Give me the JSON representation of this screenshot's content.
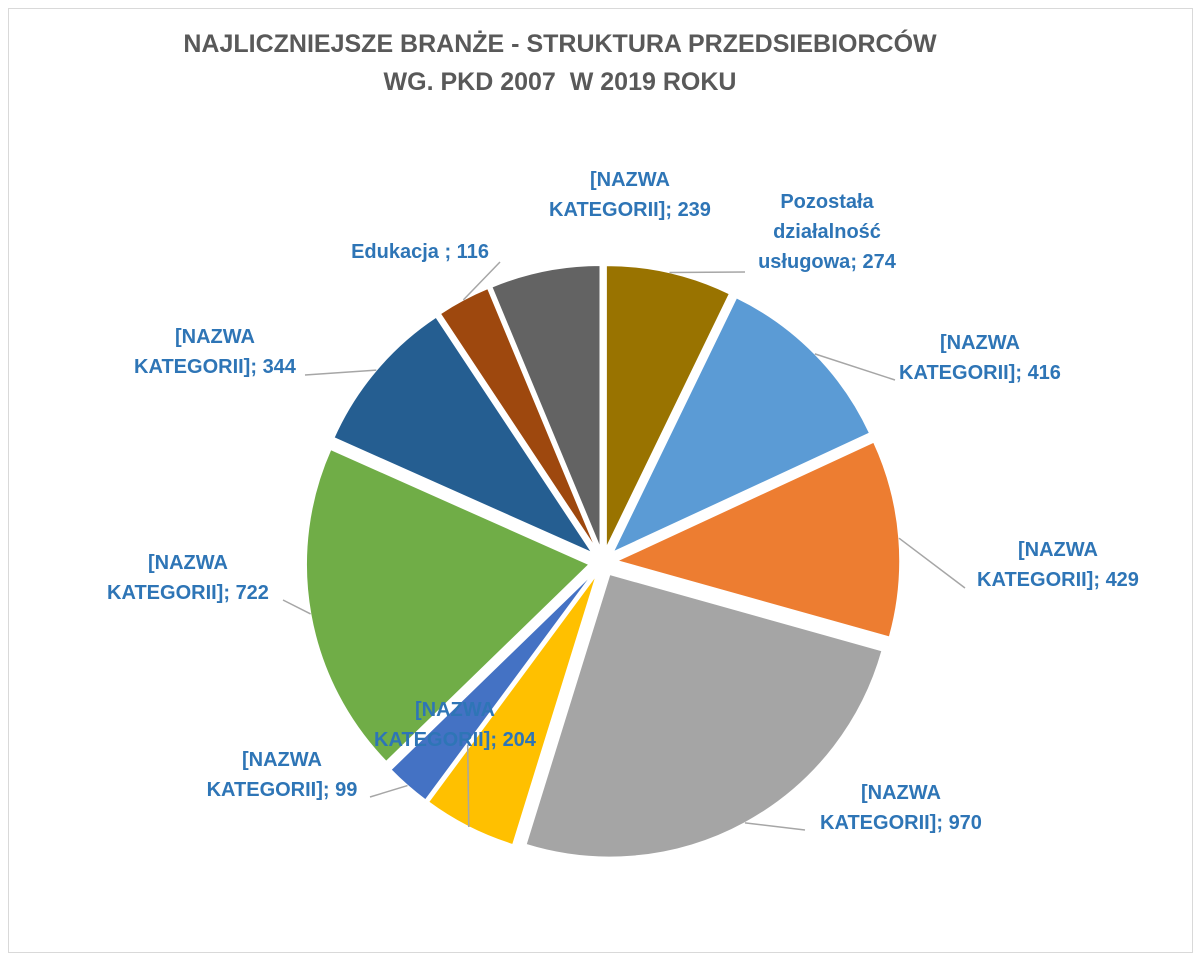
{
  "chart_data": {
    "type": "pie",
    "title": [
      "NAJLICZNIEJSZE BRANŻE - STRUKTURA PRZEDSIEBIORCÓW",
      "WG. PKD 2007  W 2019 ROKU"
    ],
    "categories": [
      "Pozostała działalność usługowa",
      "[NAZWA KATEGORII]",
      "[NAZWA KATEGORII]",
      "[NAZWA KATEGORII]",
      "[NAZWA KATEGORII]",
      "[NAZWA KATEGORII]",
      "[NAZWA KATEGORII]",
      "[NAZWA KATEGORII]",
      "Edukacja ",
      "[NAZWA KATEGORII]"
    ],
    "values": [
      274,
      416,
      429,
      970,
      204,
      99,
      722,
      344,
      116,
      239
    ],
    "colors": [
      "#997300",
      "#5b9bd5",
      "#ed7d31",
      "#a5a5a5",
      "#ffc000",
      "#4472c4",
      "#70ad47",
      "#255e91",
      "#9e480e",
      "#636363"
    ],
    "label_separator": "; "
  }
}
